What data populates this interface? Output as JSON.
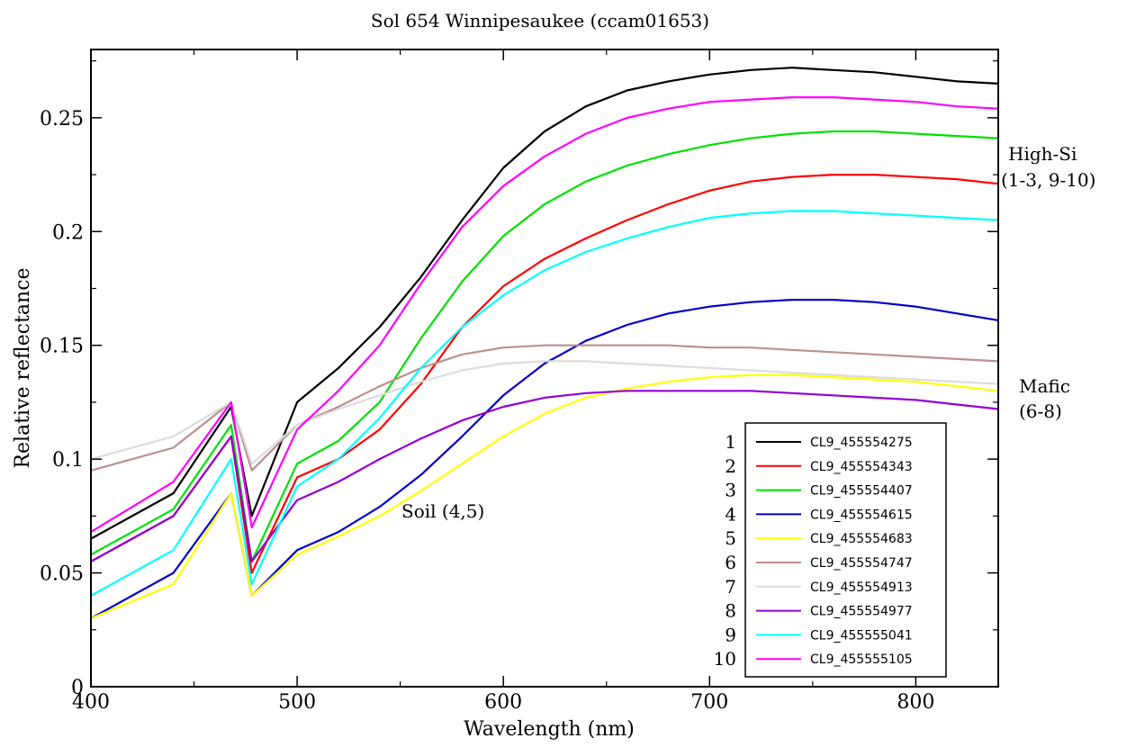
{
  "chart_data": {
    "type": "line",
    "title": "Sol 654 Winnipesaukee (ccam01653)",
    "xlabel": "Wavelength (nm)",
    "ylabel": "Relative reflectance",
    "xlim": [
      400,
      840
    ],
    "ylim": [
      0,
      0.28
    ],
    "xticks": [
      400,
      500,
      600,
      700,
      800
    ],
    "xtick_labels": [
      "400",
      "500",
      "600",
      "700",
      "800"
    ],
    "yticks": [
      0,
      0.05,
      0.1,
      0.15,
      0.2,
      0.25
    ],
    "ytick_labels": [
      "0",
      "0.05",
      "0.1",
      "0.15",
      "0.2",
      "0.25"
    ],
    "grid": false,
    "legend_position": "bottom-right",
    "annotations": [
      {
        "text": "High-Si",
        "anchor": "right-upper"
      },
      {
        "text": "(1-3, 9-10)",
        "anchor": "right-upper"
      },
      {
        "text": "Mafic",
        "anchor": "right-middle"
      },
      {
        "text": "(6-8)",
        "anchor": "right-middle"
      },
      {
        "text": "Soil (4,5)",
        "anchor": "center-left"
      }
    ],
    "series": [
      {
        "number": "1",
        "name": "CL9_455554275",
        "color": "#000000",
        "x": [
          400,
          440,
          468,
          478,
          500,
          520,
          540,
          560,
          580,
          600,
          620,
          640,
          660,
          680,
          700,
          720,
          740,
          760,
          780,
          800,
          820,
          840
        ],
        "y": [
          0.065,
          0.085,
          0.123,
          0.075,
          0.125,
          0.14,
          0.158,
          0.18,
          0.205,
          0.228,
          0.244,
          0.255,
          0.262,
          0.266,
          0.269,
          0.271,
          0.272,
          0.271,
          0.27,
          0.268,
          0.266,
          0.265
        ]
      },
      {
        "number": "2",
        "name": "CL9_455554343",
        "color": "#ff0000",
        "x": [
          400,
          440,
          468,
          478,
          500,
          520,
          540,
          560,
          580,
          600,
          620,
          640,
          660,
          680,
          700,
          720,
          740,
          760,
          780,
          800,
          820,
          840
        ],
        "y": [
          0.055,
          0.075,
          0.11,
          0.05,
          0.092,
          0.1,
          0.113,
          0.133,
          0.158,
          0.176,
          0.188,
          0.197,
          0.205,
          0.212,
          0.218,
          0.222,
          0.224,
          0.225,
          0.225,
          0.224,
          0.223,
          0.221
        ]
      },
      {
        "number": "3",
        "name": "CL9_455554407",
        "color": "#00e000",
        "x": [
          400,
          440,
          468,
          478,
          500,
          520,
          540,
          560,
          580,
          600,
          620,
          640,
          660,
          680,
          700,
          720,
          740,
          760,
          780,
          800,
          820,
          840
        ],
        "y": [
          0.058,
          0.078,
          0.115,
          0.055,
          0.098,
          0.108,
          0.125,
          0.153,
          0.178,
          0.198,
          0.212,
          0.222,
          0.229,
          0.234,
          0.238,
          0.241,
          0.243,
          0.244,
          0.244,
          0.243,
          0.242,
          0.241
        ]
      },
      {
        "number": "4",
        "name": "CL9_455554615",
        "color": "#0000c8",
        "x": [
          400,
          440,
          468,
          478,
          500,
          520,
          540,
          560,
          580,
          600,
          620,
          640,
          660,
          680,
          700,
          720,
          740,
          760,
          780,
          800,
          820,
          840
        ],
        "y": [
          0.03,
          0.05,
          0.085,
          0.04,
          0.06,
          0.068,
          0.079,
          0.093,
          0.11,
          0.128,
          0.142,
          0.152,
          0.159,
          0.164,
          0.167,
          0.169,
          0.17,
          0.17,
          0.169,
          0.167,
          0.164,
          0.161
        ]
      },
      {
        "number": "5",
        "name": "CL9_455554683",
        "color": "#ffff00",
        "x": [
          400,
          440,
          468,
          478,
          500,
          520,
          540,
          560,
          580,
          600,
          620,
          640,
          660,
          680,
          700,
          720,
          740,
          760,
          780,
          800,
          820,
          840
        ],
        "y": [
          0.03,
          0.045,
          0.085,
          0.04,
          0.058,
          0.066,
          0.075,
          0.086,
          0.098,
          0.11,
          0.12,
          0.127,
          0.131,
          0.134,
          0.136,
          0.137,
          0.137,
          0.136,
          0.135,
          0.134,
          0.132,
          0.13
        ]
      },
      {
        "number": "6",
        "name": "CL9_455554747",
        "color": "#bc8f8f",
        "x": [
          400,
          440,
          468,
          478,
          500,
          520,
          540,
          560,
          580,
          600,
          620,
          640,
          660,
          680,
          700,
          720,
          740,
          760,
          780,
          800,
          820,
          840
        ],
        "y": [
          0.095,
          0.105,
          0.125,
          0.095,
          0.115,
          0.123,
          0.132,
          0.14,
          0.146,
          0.149,
          0.15,
          0.15,
          0.15,
          0.15,
          0.149,
          0.149,
          0.148,
          0.147,
          0.146,
          0.145,
          0.144,
          0.143
        ]
      },
      {
        "number": "7",
        "name": "CL9_455554913",
        "color": "#dcdcdc",
        "x": [
          400,
          440,
          468,
          478,
          500,
          520,
          540,
          560,
          580,
          600,
          620,
          640,
          660,
          680,
          700,
          720,
          740,
          760,
          780,
          800,
          820,
          840
        ],
        "y": [
          0.1,
          0.11,
          0.125,
          0.098,
          0.115,
          0.122,
          0.128,
          0.134,
          0.139,
          0.142,
          0.143,
          0.143,
          0.142,
          0.141,
          0.14,
          0.139,
          0.138,
          0.137,
          0.136,
          0.135,
          0.134,
          0.133
        ]
      },
      {
        "number": "8",
        "name": "CL9_455554977",
        "color": "#9400d3",
        "x": [
          400,
          440,
          468,
          478,
          500,
          520,
          540,
          560,
          580,
          600,
          620,
          640,
          660,
          680,
          700,
          720,
          740,
          760,
          780,
          800,
          820,
          840
        ],
        "y": [
          0.055,
          0.075,
          0.11,
          0.055,
          0.082,
          0.09,
          0.1,
          0.109,
          0.117,
          0.123,
          0.127,
          0.129,
          0.13,
          0.13,
          0.13,
          0.13,
          0.129,
          0.128,
          0.127,
          0.126,
          0.124,
          0.122
        ]
      },
      {
        "number": "9",
        "name": "CL9_455555041",
        "color": "#00ffff",
        "x": [
          400,
          440,
          468,
          478,
          500,
          520,
          540,
          560,
          580,
          600,
          620,
          640,
          660,
          680,
          700,
          720,
          740,
          760,
          780,
          800,
          820,
          840
        ],
        "y": [
          0.04,
          0.06,
          0.1,
          0.045,
          0.088,
          0.1,
          0.118,
          0.14,
          0.158,
          0.172,
          0.183,
          0.191,
          0.197,
          0.202,
          0.206,
          0.208,
          0.209,
          0.209,
          0.208,
          0.207,
          0.206,
          0.205
        ]
      },
      {
        "number": "10",
        "name": "CL9_455555105",
        "color": "#ff00ff",
        "x": [
          400,
          440,
          468,
          478,
          500,
          520,
          540,
          560,
          580,
          600,
          620,
          640,
          660,
          680,
          700,
          720,
          740,
          760,
          780,
          800,
          820,
          840
        ],
        "y": [
          0.068,
          0.09,
          0.125,
          0.07,
          0.113,
          0.13,
          0.15,
          0.177,
          0.202,
          0.22,
          0.233,
          0.243,
          0.25,
          0.254,
          0.257,
          0.258,
          0.259,
          0.259,
          0.258,
          0.257,
          0.255,
          0.254
        ]
      }
    ]
  }
}
